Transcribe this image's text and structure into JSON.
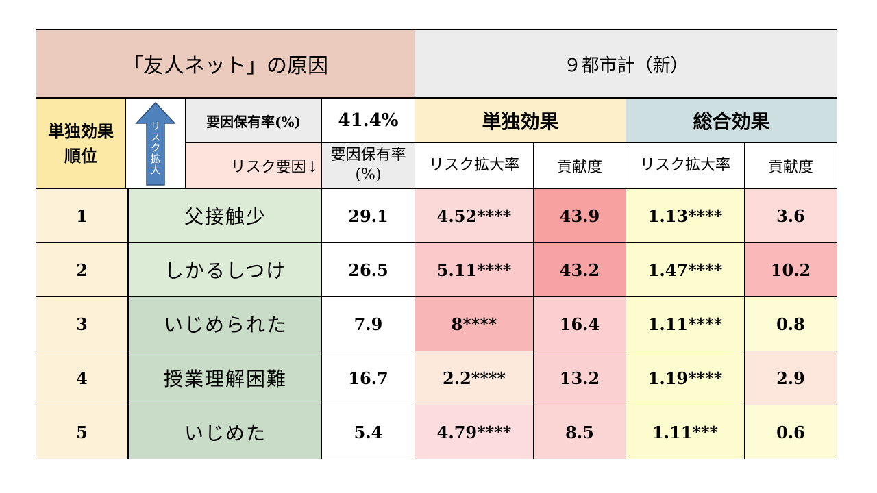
{
  "title": "「友人ネット」の原因",
  "region": "９都市計（新）",
  "rank_header": "単独効果順位",
  "arrow_label": "リスク拡大",
  "factor_rate_label": "要因保有率(%)",
  "overall_rate": "41.4%",
  "risk_factor_label": "リスク要因↓",
  "col_factor_rate": "要因保有率(%)",
  "group_single": "単独効果",
  "group_total": "総合効果",
  "col_risk_ratio": "リスク拡大率",
  "col_contribution": "貢献度",
  "colors": {
    "title_bg": "#ebcbbd",
    "region_bg": "#ececec",
    "rank_bg": "#fde9a6",
    "rank_cell_bg": "#fdf2d8",
    "single_header_bg": "#fdefc9",
    "total_header_bg": "#cddfe0",
    "factor_label_bg": "#fde3db",
    "arrow_fill": "#4f81bd"
  },
  "rows": [
    {
      "rank": "1",
      "factor": "父接触少",
      "rate": "29.1",
      "s_ratio": "4.52****",
      "s_contrib": "43.9",
      "t_ratio": "1.13****",
      "t_contrib": "3.6",
      "factor_bg": "#dcebd6",
      "s_ratio_bg": "#fcd9d9",
      "s_contrib_bg": "#f7a1a1",
      "t_ratio_bg": "#fdfccf",
      "t_contrib_bg": "#fcdbd9"
    },
    {
      "rank": "2",
      "factor": "しかるしつけ",
      "rate": "26.5",
      "s_ratio": "5.11****",
      "s_contrib": "43.2",
      "t_ratio": "1.47****",
      "t_contrib": "10.2",
      "factor_bg": "#dcebd6",
      "s_ratio_bg": "#fbc9c9",
      "s_contrib_bg": "#f7a3a3",
      "t_ratio_bg": "#fdfccf",
      "t_contrib_bg": "#fbb8b8"
    },
    {
      "rank": "3",
      "factor": "いじめられた",
      "rate": "7.9",
      "s_ratio": "8****",
      "s_contrib": "16.4",
      "t_ratio": "1.11****",
      "t_contrib": "0.8",
      "factor_bg": "#c8dcc8",
      "s_ratio_bg": "#f9b6b6",
      "s_contrib_bg": "#fbcfcf",
      "t_ratio_bg": "#fdfccf",
      "t_contrib_bg": "#fdfcd6"
    },
    {
      "rank": "4",
      "factor": "授業理解困難",
      "rate": "16.7",
      "s_ratio": "2.2****",
      "s_contrib": "13.2",
      "t_ratio": "1.19****",
      "t_contrib": "2.9",
      "factor_bg": "#c8dcc8",
      "s_ratio_bg": "#fde9dc",
      "s_contrib_bg": "#fbd0d0",
      "t_ratio_bg": "#fdfccf",
      "t_contrib_bg": "#fde7dc"
    },
    {
      "rank": "5",
      "factor": "いじめた",
      "rate": "5.4",
      "s_ratio": "4.79****",
      "s_contrib": "8.5",
      "t_ratio": "1.11***",
      "t_contrib": "0.6",
      "factor_bg": "#c8dcc8",
      "s_ratio_bg": "#fcdcdc",
      "s_contrib_bg": "#fbd4d4",
      "t_ratio_bg": "#fdfccf",
      "t_contrib_bg": "#fdfcd6"
    }
  ]
}
